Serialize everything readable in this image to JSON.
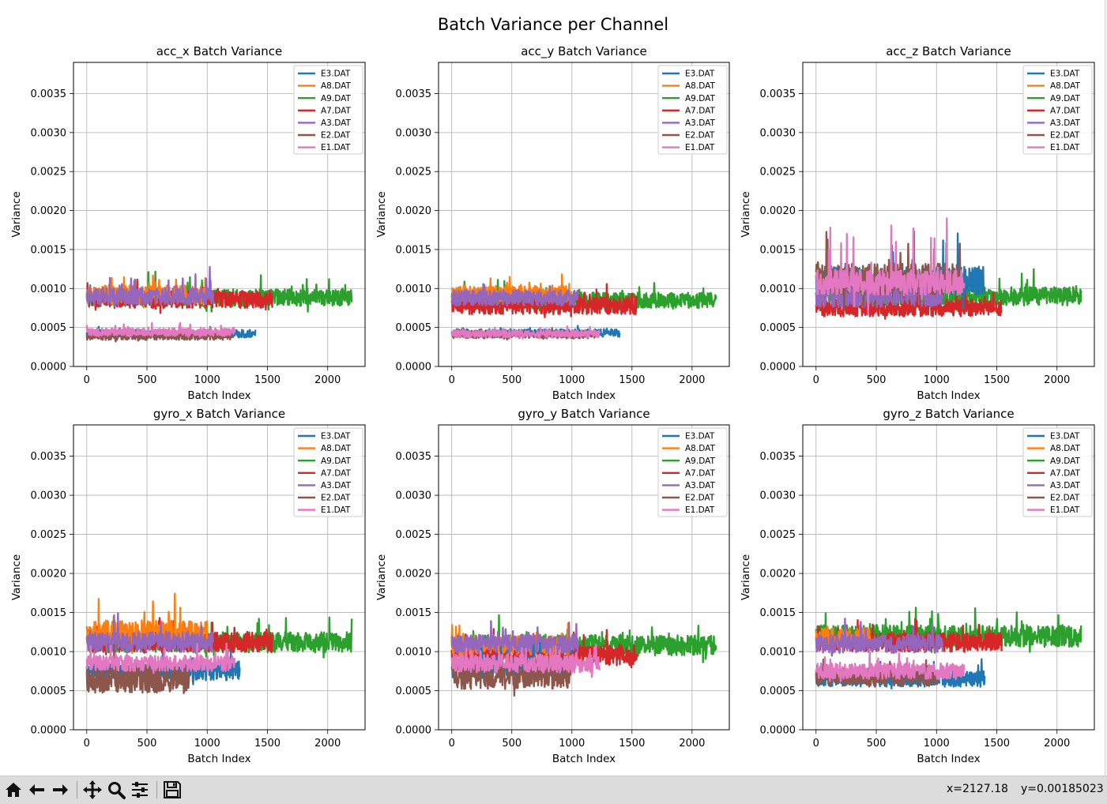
{
  "figure": {
    "suptitle": "Batch Variance per Channel",
    "legend_files": [
      "E3.DAT",
      "A8.DAT",
      "A9.DAT",
      "A7.DAT",
      "A3.DAT",
      "E2.DAT",
      "E1.DAT"
    ],
    "colors": {
      "E3.DAT": "#1f77b4",
      "A8.DAT": "#ff7f0e",
      "A9.DAT": "#2ca02c",
      "A7.DAT": "#d62728",
      "A3.DAT": "#9467bd",
      "E2.DAT": "#8c564b",
      "E1.DAT": "#e377c2"
    }
  },
  "chart_data": [
    {
      "type": "line",
      "title": "acc_x Batch Variance",
      "xlabel": "Batch Index",
      "ylabel": "Variance",
      "xlim": [
        -110,
        2310
      ],
      "ylim": [
        0,
        0.0039
      ],
      "xticks": [
        "0",
        "500",
        "1000",
        "1500",
        "2000"
      ],
      "yticks": [
        "0.0000",
        "0.0005",
        "0.0010",
        "0.0015",
        "0.0020",
        "0.0025",
        "0.0030",
        "0.0035"
      ],
      "grid": true,
      "legend": "top-right",
      "series": [
        {
          "name": "A9.DAT",
          "length": 2200,
          "base": 0.00088,
          "noise": 0.00011,
          "spike": 0.00035
        },
        {
          "name": "A7.DAT",
          "length": 1540,
          "base": 0.00086,
          "noise": 0.00011,
          "spike": 0.0003
        },
        {
          "name": "A8.DAT",
          "length": 1000,
          "base": 0.00092,
          "noise": 0.00012,
          "spike": 0.00032
        },
        {
          "name": "A3.DAT",
          "length": 1050,
          "base": 0.0009,
          "noise": 0.00011,
          "spike": 0.00045
        },
        {
          "name": "E3.DAT",
          "length": 1400,
          "base": 0.00042,
          "noise": 5e-05,
          "spike": 0.0001
        },
        {
          "name": "E2.DAT",
          "length": 1200,
          "base": 0.00039,
          "noise": 5e-05,
          "spike": 0.0001
        },
        {
          "name": "E1.DAT",
          "length": 1230,
          "base": 0.00044,
          "noise": 5e-05,
          "spike": 0.00012
        }
      ]
    },
    {
      "type": "line",
      "title": "acc_y Batch Variance",
      "xlabel": "Batch Index",
      "ylabel": "Variance",
      "xlim": [
        -110,
        2310
      ],
      "ylim": [
        0,
        0.0039
      ],
      "xticks": [
        "0",
        "500",
        "1000",
        "1500",
        "2000"
      ],
      "yticks": [
        "0.0000",
        "0.0005",
        "0.0010",
        "0.0015",
        "0.0020",
        "0.0025",
        "0.0030",
        "0.0035"
      ],
      "grid": true,
      "legend": "top-right",
      "series": [
        {
          "name": "A9.DAT",
          "length": 2200,
          "base": 0.00085,
          "noise": 0.0001,
          "spike": 0.0003
        },
        {
          "name": "A7.DAT",
          "length": 1540,
          "base": 0.00078,
          "noise": 0.00011,
          "spike": 0.00028
        },
        {
          "name": "A8.DAT",
          "length": 1000,
          "base": 0.00093,
          "noise": 0.00011,
          "spike": 0.00025
        },
        {
          "name": "A3.DAT",
          "length": 1050,
          "base": 0.00088,
          "noise": 0.0001,
          "spike": 0.00025
        },
        {
          "name": "E3.DAT",
          "length": 1400,
          "base": 0.00043,
          "noise": 5e-05,
          "spike": 0.0001
        },
        {
          "name": "E2.DAT",
          "length": 1200,
          "base": 0.00041,
          "noise": 5e-05,
          "spike": 0.0001
        },
        {
          "name": "E1.DAT",
          "length": 1230,
          "base": 0.00042,
          "noise": 5e-05,
          "spike": 0.0001
        }
      ]
    },
    {
      "type": "line",
      "title": "acc_z Batch Variance",
      "xlabel": "Batch Index",
      "ylabel": "Variance",
      "xlim": [
        -110,
        2310
      ],
      "ylim": [
        0,
        0.0039
      ],
      "xticks": [
        "0",
        "500",
        "1000",
        "1500",
        "2000"
      ],
      "yticks": [
        "0.0000",
        "0.0005",
        "0.0010",
        "0.0015",
        "0.0020",
        "0.0025",
        "0.0030",
        "0.0035"
      ],
      "grid": true,
      "legend": "top-right",
      "series": [
        {
          "name": "A9.DAT",
          "length": 2200,
          "base": 0.0009,
          "noise": 0.00012,
          "spike": 0.0004
        },
        {
          "name": "A7.DAT",
          "length": 1540,
          "base": 0.00075,
          "noise": 0.00011,
          "spike": 0.00035
        },
        {
          "name": "E3.DAT",
          "length": 1400,
          "base": 0.0011,
          "noise": 0.00018,
          "spike": 0.0007
        },
        {
          "name": "A3.DAT",
          "length": 1050,
          "base": 0.0009,
          "noise": 0.00014,
          "spike": 0.0004
        },
        {
          "name": "E2.DAT",
          "length": 1200,
          "base": 0.00112,
          "noise": 0.0002,
          "spike": 0.00075
        },
        {
          "name": "E1.DAT",
          "length": 1230,
          "base": 0.00108,
          "noise": 0.00016,
          "spike": 0.0011
        }
      ]
    },
    {
      "type": "line",
      "title": "gyro_x Batch Variance",
      "xlabel": "Batch Index",
      "ylabel": "Variance",
      "xlim": [
        -110,
        2310
      ],
      "ylim": [
        0,
        0.0039
      ],
      "xticks": [
        "0",
        "500",
        "1000",
        "1500",
        "2000"
      ],
      "yticks": [
        "0.0000",
        "0.0005",
        "0.0010",
        "0.0015",
        "0.0020",
        "0.0025",
        "0.0030",
        "0.0035"
      ],
      "grid": true,
      "legend": "top-right",
      "series": [
        {
          "name": "A9.DAT",
          "length": 2200,
          "base": 0.00112,
          "noise": 0.00013,
          "spike": 0.0004
        },
        {
          "name": "A7.DAT",
          "length": 1540,
          "base": 0.00112,
          "noise": 0.00013,
          "spike": 0.0004
        },
        {
          "name": "A8.DAT",
          "length": 1000,
          "base": 0.00125,
          "noise": 0.00015,
          "spike": 0.0006
        },
        {
          "name": "A3.DAT",
          "length": 1050,
          "base": 0.00112,
          "noise": 0.00013,
          "spike": 0.0004
        },
        {
          "name": "E3.DAT",
          "length": 1270,
          "base": 0.00075,
          "noise": 0.00012,
          "spike": 0.0003
        },
        {
          "name": "E2.DAT",
          "length": 850,
          "base": 0.00065,
          "noise": 0.00018,
          "spike": 0.0004
        },
        {
          "name": "E1.DAT",
          "length": 1230,
          "base": 0.00085,
          "noise": 0.0001,
          "spike": 0.0003
        }
      ]
    },
    {
      "type": "line",
      "title": "gyro_y Batch Variance",
      "xlabel": "Batch Index",
      "ylabel": "Variance",
      "xlim": [
        -110,
        2310
      ],
      "ylim": [
        0,
        0.0039
      ],
      "xticks": [
        "0",
        "500",
        "1000",
        "1500",
        "2000"
      ],
      "yticks": [
        "0.0000",
        "0.0005",
        "0.0010",
        "0.0015",
        "0.0020",
        "0.0025",
        "0.0030",
        "0.0035"
      ],
      "grid": true,
      "legend": "top-right",
      "series": [
        {
          "name": "A9.DAT",
          "length": 2200,
          "base": 0.00108,
          "noise": 0.00013,
          "spike": 0.0004
        },
        {
          "name": "A7.DAT",
          "length": 1540,
          "base": 0.00095,
          "noise": 0.00013,
          "spike": 0.00035
        },
        {
          "name": "A8.DAT",
          "length": 1000,
          "base": 0.00108,
          "noise": 0.00012,
          "spike": 0.0003
        },
        {
          "name": "A3.DAT",
          "length": 1050,
          "base": 0.0011,
          "noise": 0.00012,
          "spike": 0.0003
        },
        {
          "name": "E3.DAT",
          "length": 1000,
          "base": 0.0008,
          "noise": 0.00014,
          "spike": 0.00035
        },
        {
          "name": "E2.DAT",
          "length": 1000,
          "base": 0.0007,
          "noise": 0.00018,
          "spike": 0.0004
        },
        {
          "name": "E1.DAT",
          "length": 1230,
          "base": 0.00085,
          "noise": 0.00012,
          "spike": 0.0003
        }
      ]
    },
    {
      "type": "line",
      "title": "gyro_z Batch Variance",
      "xlabel": "Batch Index",
      "ylabel": "Variance",
      "xlim": [
        -110,
        2310
      ],
      "ylim": [
        0,
        0.0039
      ],
      "xticks": [
        "0",
        "500",
        "1000",
        "1500",
        "2000"
      ],
      "yticks": [
        "0.0000",
        "0.0005",
        "0.0010",
        "0.0015",
        "0.0020",
        "0.0025",
        "0.0030",
        "0.0035"
      ],
      "grid": true,
      "legend": "top-right",
      "series": [
        {
          "name": "A9.DAT",
          "length": 2200,
          "base": 0.0012,
          "noise": 0.00014,
          "spike": 0.00045
        },
        {
          "name": "A7.DAT",
          "length": 1540,
          "base": 0.00112,
          "noise": 0.00012,
          "spike": 0.00035
        },
        {
          "name": "A8.DAT",
          "length": 450,
          "base": 0.00118,
          "noise": 0.00013,
          "spike": 0.00035
        },
        {
          "name": "A3.DAT",
          "length": 1050,
          "base": 0.0011,
          "noise": 0.00012,
          "spike": 0.0003
        },
        {
          "name": "E3.DAT",
          "length": 1400,
          "base": 0.00065,
          "noise": 0.0001,
          "spike": 0.00025
        },
        {
          "name": "E2.DAT",
          "length": 1000,
          "base": 0.00068,
          "noise": 0.00012,
          "spike": 0.0003
        },
        {
          "name": "E1.DAT",
          "length": 1230,
          "base": 0.00075,
          "noise": 0.0001,
          "spike": 0.0003
        }
      ]
    }
  ],
  "toolbar": {
    "buttons": [
      "home-icon",
      "back-icon",
      "forward-icon",
      "pan-icon",
      "zoom-icon",
      "configure-icon",
      "save-icon"
    ],
    "coord_x": "x=2127.18",
    "coord_y": "y=0.00185023"
  }
}
